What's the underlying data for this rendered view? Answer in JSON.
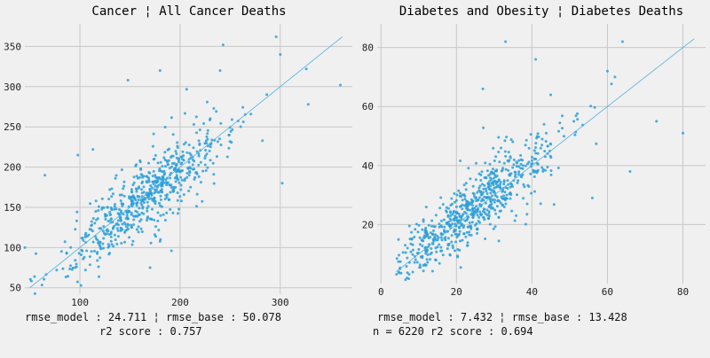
{
  "chart_data": [
    {
      "type": "scatter",
      "title": "Cancer ¦ All Cancer Deaths",
      "xlim": [
        45,
        372
      ],
      "ylim": [
        42,
        378
      ],
      "xticks": [
        100,
        200,
        300
      ],
      "yticks": [
        50,
        100,
        150,
        200,
        250,
        300,
        350
      ],
      "grid": true,
      "point_color": "#2a9fd8",
      "line_color": "#4fb0e0",
      "reference_line": [
        [
          50,
          50
        ],
        [
          362,
          362
        ]
      ],
      "points": {
        "count": 650,
        "center": [
          165,
          163
        ],
        "sd": 40,
        "residual_sd": 22,
        "outliers": [
          [
            98,
            215
          ],
          [
            113,
            222
          ],
          [
            148,
            308
          ],
          [
            180,
            320
          ],
          [
            243,
            352
          ],
          [
            296,
            362
          ],
          [
            300,
            340
          ],
          [
            302,
            180
          ],
          [
            360,
            302
          ],
          [
            65,
            190
          ],
          [
            170,
            75
          ],
          [
            326,
            322
          ],
          [
            328,
            278
          ],
          [
            45,
            100
          ],
          [
            240,
            320
          ]
        ]
      },
      "footer_lines": [
        "rmse_model : 24.711 ¦ rmse_base : 50.078",
        "r2 score : 0.757"
      ]
    },
    {
      "type": "scatter",
      "title": "Diabetes and Obesity ¦ Diabetes Deaths",
      "xlim": [
        -1,
        86
      ],
      "ylim": [
        0,
        88
      ],
      "xticks": [
        0,
        20,
        40,
        60,
        80
      ],
      "yticks": [
        20,
        40,
        60,
        80
      ],
      "grid": true,
      "point_color": "#2a9fd8",
      "line_color": "#4fb0e0",
      "reference_line": [
        [
          4,
          4
        ],
        [
          83,
          83
        ]
      ],
      "points": {
        "count": 700,
        "center": [
          25,
          26
        ],
        "sd": 11,
        "residual_sd": 6,
        "outliers": [
          [
            33,
            82
          ],
          [
            64,
            82
          ],
          [
            80,
            51
          ],
          [
            73,
            55
          ],
          [
            60,
            72
          ],
          [
            62,
            70
          ],
          [
            66,
            38
          ],
          [
            56,
            29
          ],
          [
            41,
            76
          ],
          [
            27,
            66
          ],
          [
            5,
            5
          ],
          [
            12,
            11
          ]
        ]
      },
      "footer_lines": [
        "rmse_model : 7.432 ¦ rmse_base : 13.428",
        "n = 6220    r2 score : 0.694"
      ]
    }
  ]
}
